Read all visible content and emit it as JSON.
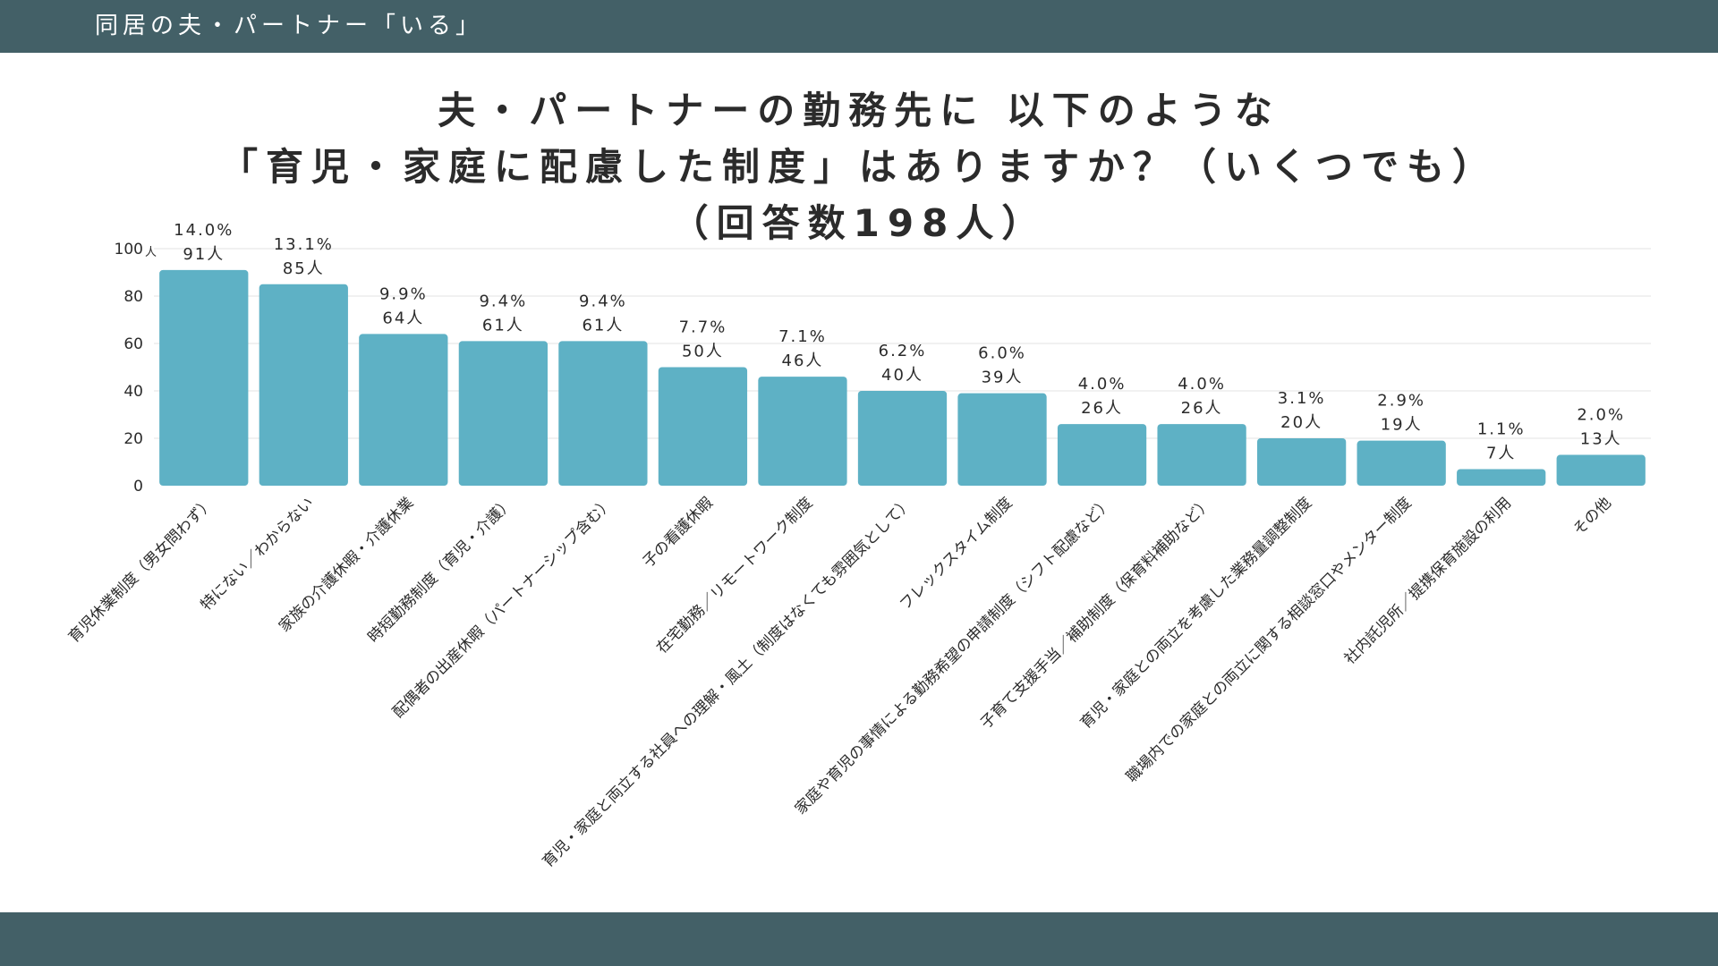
{
  "header": {
    "title": "同居の夫・パートナー「いる」"
  },
  "colors": {
    "header_bg": "#436067",
    "bar": "#5eb1c5",
    "grid": "#e3e3e3",
    "text": "#2b2b2b"
  },
  "chart_data": {
    "type": "bar",
    "title_lines": [
      "夫・パートナーの勤務先に 以下のような",
      "「育児・家庭に配慮した制度」はありますか？（いくつでも）",
      "（回答数198人）"
    ],
    "ylim": [
      0,
      100
    ],
    "yticks": [
      0,
      20,
      40,
      60,
      80,
      100
    ],
    "ytick_labels": [
      "0",
      "20",
      "40",
      "60",
      "80",
      "100"
    ],
    "yunit": "人",
    "grid": true,
    "categories": [
      "育児休業制度（男女問わず）",
      "特にない／わからない",
      "家族の介護休暇・介護休業",
      "時短勤務制度（育児・介護）",
      "配偶者の出産休暇（パートナーシップ含む）",
      "子の看護休暇",
      "在宅勤務／リモートワーク制度",
      "育児・家庭と両立する社員への理解・風土（制度はなくても雰囲気として）",
      "フレックスタイム制度",
      "家庭や育児の事情による勤務希望の申請制度（シフト配慮など）",
      "子育て支援手当／補助制度（保育料補助など）",
      "育児・家庭との両立を考慮した業務量調整制度",
      "職場内での家庭との両立に関する相談窓口やメンター制度",
      "社内託児所／提携保育施設の利用",
      "その他"
    ],
    "values": [
      91,
      85,
      64,
      61,
      61,
      50,
      46,
      40,
      39,
      26,
      26,
      20,
      19,
      7,
      13
    ],
    "percent_labels": [
      "14.0%",
      "13.1%",
      "9.9%",
      "9.4%",
      "9.4%",
      "7.7%",
      "7.1%",
      "6.2%",
      "6.0%",
      "4.0%",
      "4.0%",
      "3.1%",
      "2.9%",
      "1.1%",
      "2.0%"
    ],
    "count_labels": [
      "91人",
      "85人",
      "64人",
      "61人",
      "61人",
      "50人",
      "46人",
      "40人",
      "39人",
      "26人",
      "26人",
      "20人",
      "19人",
      "7人",
      "13人"
    ]
  }
}
